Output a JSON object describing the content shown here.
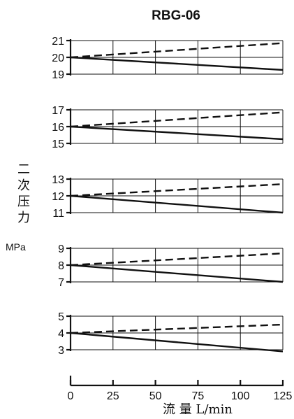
{
  "chart_data": [
    {
      "type": "line",
      "title": "RBG-06",
      "ylabel": "二次压力",
      "yunit": "MPa",
      "xlabel": "流 量 L/min",
      "x": [
        0,
        125
      ],
      "xticks": [
        0,
        25,
        50,
        75,
        100,
        125
      ],
      "yticks": [
        19,
        20,
        21
      ],
      "ylim": [
        19,
        21
      ],
      "grid": true,
      "series": [
        {
          "style": "dashed",
          "values": [
            20,
            20.85
          ]
        },
        {
          "style": "solid",
          "values": [
            20,
            19.25
          ]
        }
      ]
    },
    {
      "type": "line",
      "x": [
        0,
        125
      ],
      "yticks": [
        15,
        16,
        17
      ],
      "ylim": [
        15,
        17
      ],
      "grid": true,
      "series": [
        {
          "style": "dashed",
          "values": [
            16,
            16.85
          ]
        },
        {
          "style": "solid",
          "values": [
            16,
            15.25
          ]
        }
      ]
    },
    {
      "type": "line",
      "x": [
        0,
        125
      ],
      "yticks": [
        11,
        12,
        13
      ],
      "ylim": [
        11,
        13
      ],
      "grid": true,
      "series": [
        {
          "style": "dashed",
          "values": [
            12,
            12.7
          ]
        },
        {
          "style": "solid",
          "values": [
            12,
            11.0
          ]
        }
      ]
    },
    {
      "type": "line",
      "x": [
        0,
        125
      ],
      "yticks": [
        7,
        8,
        9
      ],
      "ylim": [
        7,
        9
      ],
      "grid": true,
      "series": [
        {
          "style": "dashed",
          "values": [
            8,
            8.7
          ]
        },
        {
          "style": "solid",
          "values": [
            8,
            7.0
          ]
        }
      ]
    },
    {
      "type": "line",
      "x": [
        0,
        125
      ],
      "yticks": [
        3,
        4,
        5
      ],
      "ylim": [
        3,
        5
      ],
      "grid": true,
      "series": [
        {
          "style": "dashed",
          "values": [
            4,
            4.5
          ]
        },
        {
          "style": "solid",
          "values": [
            4,
            2.9
          ]
        }
      ]
    }
  ]
}
